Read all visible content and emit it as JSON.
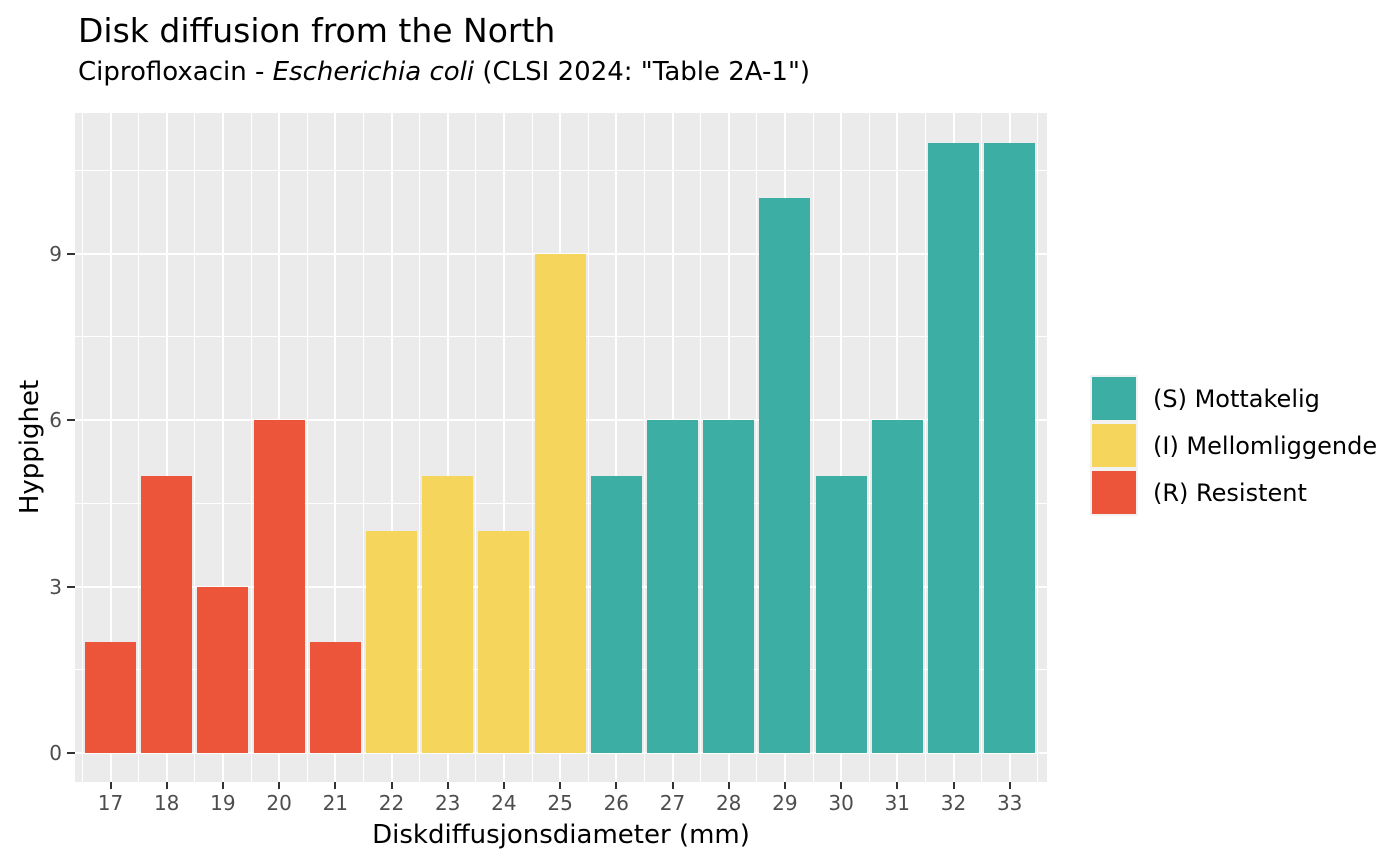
{
  "figure": {
    "title": "Disk diffusion from the North",
    "subtitle": {
      "prefix": "Ciprofloxacin - ",
      "italic": "Escherichia coli",
      "suffix": " (CLSI 2024: \"Table 2A-1\")"
    }
  },
  "chart_data": {
    "type": "bar",
    "title": "Disk diffusion from the North",
    "subtitle": "Ciprofloxacin - Escherichia coli (CLSI 2024: \"Table 2A-1\")",
    "xlabel": "Diskdiffusjonsdiameter (mm)",
    "ylabel": "Hyppighet",
    "x": [
      17,
      18,
      19,
      20,
      21,
      22,
      23,
      24,
      25,
      26,
      27,
      28,
      29,
      30,
      31,
      32,
      33
    ],
    "values": [
      2,
      5,
      3,
      6,
      2,
      4,
      5,
      4,
      9,
      5,
      6,
      6,
      10,
      5,
      6,
      11,
      11
    ],
    "category": [
      "R",
      "R",
      "R",
      "R",
      "R",
      "I",
      "I",
      "I",
      "I",
      "S",
      "S",
      "S",
      "S",
      "S",
      "S",
      "S",
      "S"
    ],
    "colors": {
      "S": "#3CAEA3",
      "I": "#F6D55C",
      "R": "#ED553B"
    },
    "legend": [
      {
        "class": "S",
        "label": "(S) Mottakelig"
      },
      {
        "class": "I",
        "label": "(I) Mellomliggende"
      },
      {
        "class": "R",
        "label": "(R) Resistent"
      }
    ],
    "legend_position": "right",
    "y_ticks": [
      0,
      3,
      6,
      9
    ],
    "y_minor": [
      1.5,
      4.5,
      7.5,
      10.5
    ],
    "x_ticks": [
      17,
      18,
      19,
      20,
      21,
      22,
      23,
      24,
      25,
      26,
      27,
      28,
      29,
      30,
      31,
      32,
      33
    ],
    "ylim": [
      0,
      11.55
    ],
    "grid": true,
    "panel_bg": "#EBEBEB",
    "grid_color": "#FFFFFF",
    "tick_label_color": "#4D4D4D",
    "tick_mark_color": "#333333"
  }
}
